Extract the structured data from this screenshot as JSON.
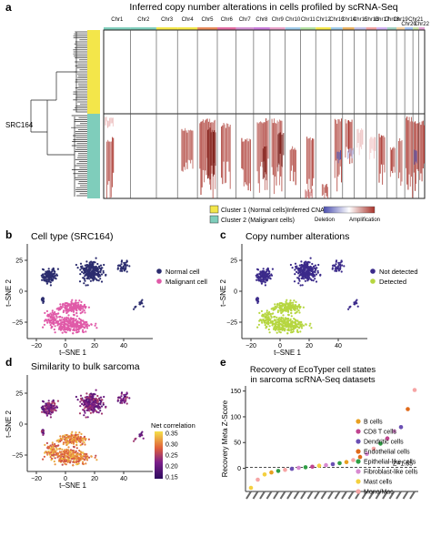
{
  "panel_a": {
    "letter": "a",
    "title": "Inferred copy number alterations in cells profiled by scRNA-Seq",
    "sample_label": "SRC164",
    "chromosomes": [
      "Chr1",
      "Chr2",
      "Chr3",
      "Chr4",
      "Chr5",
      "Chr6",
      "Chr7",
      "Chr8",
      "Chr9",
      "Chr10",
      "Chr11",
      "Chr12",
      "Chr13",
      "Chr14",
      "Chr15",
      "Chr16",
      "Chr17",
      "Chr18",
      "Chr19",
      "Chr20",
      "Chr21",
      "Chr22"
    ],
    "legend_clusters": [
      "Cluster 1 (Normal cells)",
      "Cluster 2 (Malignant cells)"
    ],
    "legend_cna_title": "Inferred CNA",
    "legend_cna_low": "Deletion",
    "legend_cna_high": "Amplification",
    "colors": {
      "cluster1": "#f3e64a",
      "cluster2": "#7fcdbb",
      "amplification": "#a8322a",
      "deletion": "#4b4fb0"
    }
  },
  "panel_b": {
    "letter": "b",
    "title": "Cell type (SRC164)",
    "xlabel": "t–SNE 1",
    "ylabel": "t–SNE 2",
    "legend": [
      "Normal cell",
      "Malignant cell"
    ],
    "colors": [
      "#2b2c6e",
      "#e05aa8"
    ],
    "xticks": [
      "−20",
      "0",
      "20",
      "40"
    ],
    "yticks": [
      "−25",
      "0",
      "25"
    ]
  },
  "panel_c": {
    "letter": "c",
    "title": "Copy number alterations",
    "xlabel": "t–SNE 1",
    "ylabel": "t–SNE 2",
    "legend": [
      "Not detected",
      "Detected"
    ],
    "colors": [
      "#3b2a8a",
      "#b6d640"
    ],
    "xticks": [
      "−20",
      "0",
      "20",
      "40"
    ],
    "yticks": [
      "−25",
      "0",
      "25"
    ]
  },
  "panel_d": {
    "letter": "d",
    "title": "Similarity to bulk sarcoma",
    "xlabel": "t–SNE 1",
    "ylabel": "t–SNE 2",
    "colorbar_title": "Net correlation",
    "colorbar_ticks": [
      "0.35",
      "0.30",
      "0.25",
      "0.20",
      "0.15"
    ],
    "xticks": [
      "−20",
      "0",
      "20",
      "40"
    ],
    "yticks": [
      "−25",
      "0",
      "25"
    ]
  },
  "panel_e": {
    "letter": "e",
    "title_line1": "Recovery of EcoTyper cell states",
    "title_line2": "in sarcoma scRNA-Seq datasets",
    "ylabel": "Recovery Meta Z-Score",
    "yticks": [
      "0",
      "50",
      "100",
      "150"
    ],
    "threshold_label": "Z=1.65",
    "legend": [
      {
        "name": "B cells",
        "color": "#e8a020"
      },
      {
        "name": "CD8 T cells",
        "color": "#c0448f"
      },
      {
        "name": "Dendritic cells",
        "color": "#6a4fb3"
      },
      {
        "name": "Endothelial cells",
        "color": "#e06a1a"
      },
      {
        "name": "Epithelial-like cells",
        "color": "#2f9e44"
      },
      {
        "name": "Fibroblast-like cells",
        "color": "#d88ad0"
      },
      {
        "name": "Mast cells",
        "color": "#f4d03f"
      },
      {
        "name": "Mono/Mac",
        "color": "#f6a5a5"
      }
    ]
  },
  "chart_data": [
    {
      "type": "scatter",
      "title": "Recovery of EcoTyper cell states in sarcoma scRNA-Seq datasets",
      "ylabel": "Recovery Meta Z-Score",
      "ylim": [
        -45,
        160
      ],
      "threshold": 1.65,
      "points": [
        {
          "rank": 1,
          "y": -38,
          "cls": "Mast cells"
        },
        {
          "rank": 2,
          "y": -22,
          "cls": "Mono/Mac"
        },
        {
          "rank": 3,
          "y": -12,
          "cls": "Mast cells"
        },
        {
          "rank": 4,
          "y": -8,
          "cls": "B cells"
        },
        {
          "rank": 5,
          "y": -5,
          "cls": "Epithelial-like cells"
        },
        {
          "rank": 6,
          "y": -3,
          "cls": "Mono/Mac"
        },
        {
          "rank": 7,
          "y": -1,
          "cls": "Dendritic cells"
        },
        {
          "rank": 8,
          "y": 1,
          "cls": "Fibroblast-like cells"
        },
        {
          "rank": 9,
          "y": 2,
          "cls": "Epithelial-like cells"
        },
        {
          "rank": 10,
          "y": 3,
          "cls": "CD8 T cells"
        },
        {
          "rank": 11,
          "y": 5,
          "cls": "Mast cells"
        },
        {
          "rank": 12,
          "y": 6,
          "cls": "Fibroblast-like cells"
        },
        {
          "rank": 13,
          "y": 8,
          "cls": "Dendritic cells"
        },
        {
          "rank": 14,
          "y": 10,
          "cls": "Epithelial-like cells"
        },
        {
          "rank": 15,
          "y": 12,
          "cls": "B cells"
        },
        {
          "rank": 16,
          "y": 16,
          "cls": "Mono/Mac"
        },
        {
          "rank": 17,
          "y": 22,
          "cls": "Endothelial cells"
        },
        {
          "rank": 18,
          "y": 28,
          "cls": "Fibroblast-like cells"
        },
        {
          "rank": 19,
          "y": 38,
          "cls": "Mono/Mac"
        },
        {
          "rank": 20,
          "y": 48,
          "cls": "Epithelial-like cells"
        },
        {
          "rank": 21,
          "y": 58,
          "cls": "CD8 T cells"
        },
        {
          "rank": 22,
          "y": 72,
          "cls": "Fibroblast-like cells"
        },
        {
          "rank": 23,
          "y": 80,
          "cls": "Dendritic cells"
        },
        {
          "rank": 24,
          "y": 115,
          "cls": "Endothelial cells"
        },
        {
          "rank": 25,
          "y": 152,
          "cls": "Mono/Mac"
        }
      ]
    }
  ]
}
